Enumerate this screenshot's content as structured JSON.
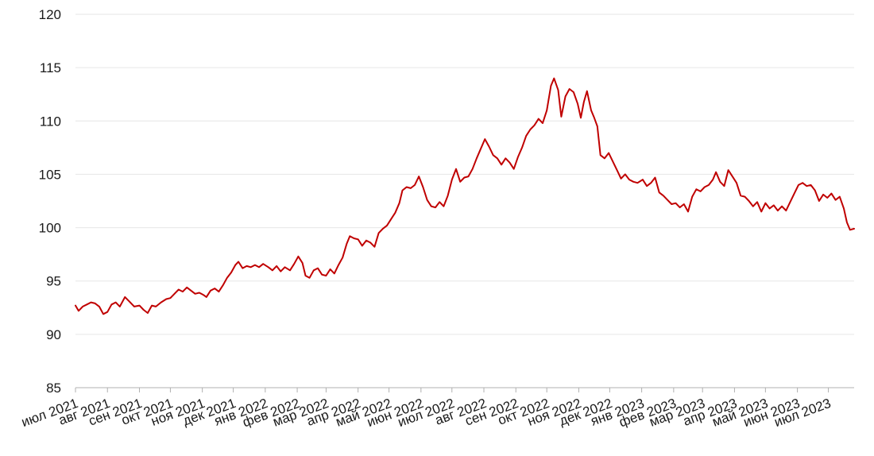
{
  "chart_data": {
    "type": "line",
    "title": "",
    "xlabel": "",
    "ylabel": "",
    "ylim": [
      85,
      120
    ],
    "yticks": [
      85,
      90,
      95,
      100,
      105,
      110,
      115,
      120
    ],
    "grid": "horizontal",
    "legend": "none",
    "x_tick_labels": [
      "июл 2021",
      "авг 2021",
      "сен 2021",
      "окт 2021",
      "ноя 2021",
      "дек 2021",
      "янв 2022",
      "фев 2022",
      "мар 2022",
      "апр 2022",
      "май 2022",
      "июн 2022",
      "июл 2022",
      "авг 2022",
      "сен 2022",
      "окт 2022",
      "ноя 2022",
      "дек 2022",
      "янв 2023",
      "фев 2023",
      "мар 2023",
      "апр 2023",
      "май 2023",
      "июн 2023",
      "июл 2023"
    ],
    "x_range": [
      "2021-07-01",
      "2023-07-26"
    ],
    "series": [
      {
        "color": "#c00000",
        "points": [
          [
            "2021-07-01",
            92.7
          ],
          [
            "2021-07-04",
            92.2
          ],
          [
            "2021-07-08",
            92.6
          ],
          [
            "2021-07-12",
            92.8
          ],
          [
            "2021-07-16",
            93.0
          ],
          [
            "2021-07-20",
            92.9
          ],
          [
            "2021-07-24",
            92.6
          ],
          [
            "2021-07-28",
            91.9
          ],
          [
            "2021-08-01",
            92.1
          ],
          [
            "2021-08-05",
            92.8
          ],
          [
            "2021-08-09",
            93.0
          ],
          [
            "2021-08-13",
            92.6
          ],
          [
            "2021-08-18",
            93.5
          ],
          [
            "2021-08-22",
            93.1
          ],
          [
            "2021-08-27",
            92.6
          ],
          [
            "2021-09-01",
            92.7
          ],
          [
            "2021-09-05",
            92.3
          ],
          [
            "2021-09-09",
            92.0
          ],
          [
            "2021-09-13",
            92.7
          ],
          [
            "2021-09-17",
            92.6
          ],
          [
            "2021-09-22",
            93.0
          ],
          [
            "2021-09-27",
            93.3
          ],
          [
            "2021-10-01",
            93.4
          ],
          [
            "2021-10-05",
            93.8
          ],
          [
            "2021-10-09",
            94.2
          ],
          [
            "2021-10-13",
            94.0
          ],
          [
            "2021-10-17",
            94.4
          ],
          [
            "2021-10-21",
            94.1
          ],
          [
            "2021-10-25",
            93.8
          ],
          [
            "2021-10-29",
            93.9
          ],
          [
            "2021-11-02",
            93.7
          ],
          [
            "2021-11-05",
            93.5
          ],
          [
            "2021-11-09",
            94.1
          ],
          [
            "2021-11-13",
            94.3
          ],
          [
            "2021-11-17",
            94.0
          ],
          [
            "2021-11-21",
            94.6
          ],
          [
            "2021-11-25",
            95.3
          ],
          [
            "2021-11-29",
            95.8
          ],
          [
            "2021-12-03",
            96.5
          ],
          [
            "2021-12-06",
            96.8
          ],
          [
            "2021-12-10",
            96.2
          ],
          [
            "2021-12-14",
            96.4
          ],
          [
            "2021-12-18",
            96.3
          ],
          [
            "2021-12-22",
            96.5
          ],
          [
            "2021-12-26",
            96.3
          ],
          [
            "2021-12-30",
            96.6
          ],
          [
            "2022-01-04",
            96.3
          ],
          [
            "2022-01-08",
            96.0
          ],
          [
            "2022-01-12",
            96.4
          ],
          [
            "2022-01-16",
            95.9
          ],
          [
            "2022-01-20",
            96.3
          ],
          [
            "2022-01-25",
            96.0
          ],
          [
            "2022-01-29",
            96.6
          ],
          [
            "2022-02-02",
            97.3
          ],
          [
            "2022-02-06",
            96.7
          ],
          [
            "2022-02-09",
            95.5
          ],
          [
            "2022-02-13",
            95.3
          ],
          [
            "2022-02-17",
            96.0
          ],
          [
            "2022-02-21",
            96.2
          ],
          [
            "2022-02-25",
            95.6
          ],
          [
            "2022-03-01",
            95.5
          ],
          [
            "2022-03-05",
            96.1
          ],
          [
            "2022-03-09",
            95.7
          ],
          [
            "2022-03-13",
            96.5
          ],
          [
            "2022-03-17",
            97.2
          ],
          [
            "2022-03-21",
            98.5
          ],
          [
            "2022-03-24",
            99.2
          ],
          [
            "2022-03-28",
            99.0
          ],
          [
            "2022-04-01",
            98.9
          ],
          [
            "2022-04-05",
            98.3
          ],
          [
            "2022-04-09",
            98.8
          ],
          [
            "2022-04-13",
            98.6
          ],
          [
            "2022-04-17",
            98.2
          ],
          [
            "2022-04-21",
            99.5
          ],
          [
            "2022-04-25",
            99.9
          ],
          [
            "2022-04-29",
            100.2
          ],
          [
            "2022-05-03",
            100.8
          ],
          [
            "2022-05-07",
            101.4
          ],
          [
            "2022-05-11",
            102.3
          ],
          [
            "2022-05-14",
            103.5
          ],
          [
            "2022-05-18",
            103.8
          ],
          [
            "2022-05-22",
            103.7
          ],
          [
            "2022-05-26",
            104.0
          ],
          [
            "2022-05-30",
            104.8
          ],
          [
            "2022-06-03",
            103.8
          ],
          [
            "2022-06-07",
            102.6
          ],
          [
            "2022-06-11",
            102.0
          ],
          [
            "2022-06-15",
            101.9
          ],
          [
            "2022-06-19",
            102.4
          ],
          [
            "2022-06-23",
            102.0
          ],
          [
            "2022-06-27",
            103.0
          ],
          [
            "2022-07-01",
            104.5
          ],
          [
            "2022-07-05",
            105.5
          ],
          [
            "2022-07-09",
            104.3
          ],
          [
            "2022-07-13",
            104.7
          ],
          [
            "2022-07-17",
            104.8
          ],
          [
            "2022-07-21",
            105.5
          ],
          [
            "2022-07-25",
            106.5
          ],
          [
            "2022-07-29",
            107.4
          ],
          [
            "2022-08-02",
            108.3
          ],
          [
            "2022-08-06",
            107.6
          ],
          [
            "2022-08-10",
            106.8
          ],
          [
            "2022-08-14",
            106.5
          ],
          [
            "2022-08-18",
            105.9
          ],
          [
            "2022-08-22",
            106.5
          ],
          [
            "2022-08-26",
            106.1
          ],
          [
            "2022-08-30",
            105.5
          ],
          [
            "2022-09-03",
            106.6
          ],
          [
            "2022-09-07",
            107.5
          ],
          [
            "2022-09-11",
            108.6
          ],
          [
            "2022-09-15",
            109.2
          ],
          [
            "2022-09-19",
            109.6
          ],
          [
            "2022-09-23",
            110.2
          ],
          [
            "2022-09-27",
            109.8
          ],
          [
            "2022-10-01",
            111.0
          ],
          [
            "2022-10-05",
            113.3
          ],
          [
            "2022-10-08",
            114.0
          ],
          [
            "2022-10-12",
            112.9
          ],
          [
            "2022-10-15",
            110.4
          ],
          [
            "2022-10-19",
            112.3
          ],
          [
            "2022-10-23",
            113.0
          ],
          [
            "2022-10-27",
            112.7
          ],
          [
            "2022-10-31",
            111.6
          ],
          [
            "2022-11-03",
            110.3
          ],
          [
            "2022-11-06",
            111.8
          ],
          [
            "2022-11-09",
            112.8
          ],
          [
            "2022-11-13",
            111.0
          ],
          [
            "2022-11-16",
            110.3
          ],
          [
            "2022-11-19",
            109.5
          ],
          [
            "2022-11-22",
            106.8
          ],
          [
            "2022-11-26",
            106.5
          ],
          [
            "2022-11-30",
            107.0
          ],
          [
            "2022-12-04",
            106.2
          ],
          [
            "2022-12-08",
            105.4
          ],
          [
            "2022-12-12",
            104.6
          ],
          [
            "2022-12-16",
            105.0
          ],
          [
            "2022-12-20",
            104.5
          ],
          [
            "2022-12-24",
            104.3
          ],
          [
            "2022-12-28",
            104.2
          ],
          [
            "2023-01-02",
            104.5
          ],
          [
            "2023-01-06",
            103.9
          ],
          [
            "2023-01-10",
            104.2
          ],
          [
            "2023-01-14",
            104.7
          ],
          [
            "2023-01-18",
            103.3
          ],
          [
            "2023-01-22",
            103.0
          ],
          [
            "2023-01-26",
            102.6
          ],
          [
            "2023-01-30",
            102.2
          ],
          [
            "2023-02-03",
            102.3
          ],
          [
            "2023-02-07",
            101.9
          ],
          [
            "2023-02-11",
            102.2
          ],
          [
            "2023-02-15",
            101.5
          ],
          [
            "2023-02-19",
            102.9
          ],
          [
            "2023-02-23",
            103.6
          ],
          [
            "2023-02-27",
            103.4
          ],
          [
            "2023-03-03",
            103.8
          ],
          [
            "2023-03-07",
            104.0
          ],
          [
            "2023-03-11",
            104.5
          ],
          [
            "2023-03-14",
            105.2
          ],
          [
            "2023-03-18",
            104.3
          ],
          [
            "2023-03-22",
            103.9
          ],
          [
            "2023-03-26",
            105.4
          ],
          [
            "2023-03-30",
            104.8
          ],
          [
            "2023-04-03",
            104.2
          ],
          [
            "2023-04-07",
            103.0
          ],
          [
            "2023-04-11",
            102.9
          ],
          [
            "2023-04-15",
            102.5
          ],
          [
            "2023-04-19",
            102.0
          ],
          [
            "2023-04-23",
            102.4
          ],
          [
            "2023-04-27",
            101.5
          ],
          [
            "2023-05-01",
            102.3
          ],
          [
            "2023-05-05",
            101.8
          ],
          [
            "2023-05-09",
            102.1
          ],
          [
            "2023-05-13",
            101.6
          ],
          [
            "2023-05-17",
            102.0
          ],
          [
            "2023-05-21",
            101.6
          ],
          [
            "2023-05-25",
            102.4
          ],
          [
            "2023-05-29",
            103.2
          ],
          [
            "2023-06-02",
            104.0
          ],
          [
            "2023-06-06",
            104.2
          ],
          [
            "2023-06-10",
            103.9
          ],
          [
            "2023-06-14",
            104.0
          ],
          [
            "2023-06-18",
            103.5
          ],
          [
            "2023-06-22",
            102.5
          ],
          [
            "2023-06-26",
            103.1
          ],
          [
            "2023-06-30",
            102.8
          ],
          [
            "2023-07-04",
            103.2
          ],
          [
            "2023-07-08",
            102.6
          ],
          [
            "2023-07-12",
            102.9
          ],
          [
            "2023-07-16",
            101.8
          ],
          [
            "2023-07-19",
            100.5
          ],
          [
            "2023-07-22",
            99.8
          ],
          [
            "2023-07-26",
            99.9
          ]
        ]
      }
    ]
  }
}
